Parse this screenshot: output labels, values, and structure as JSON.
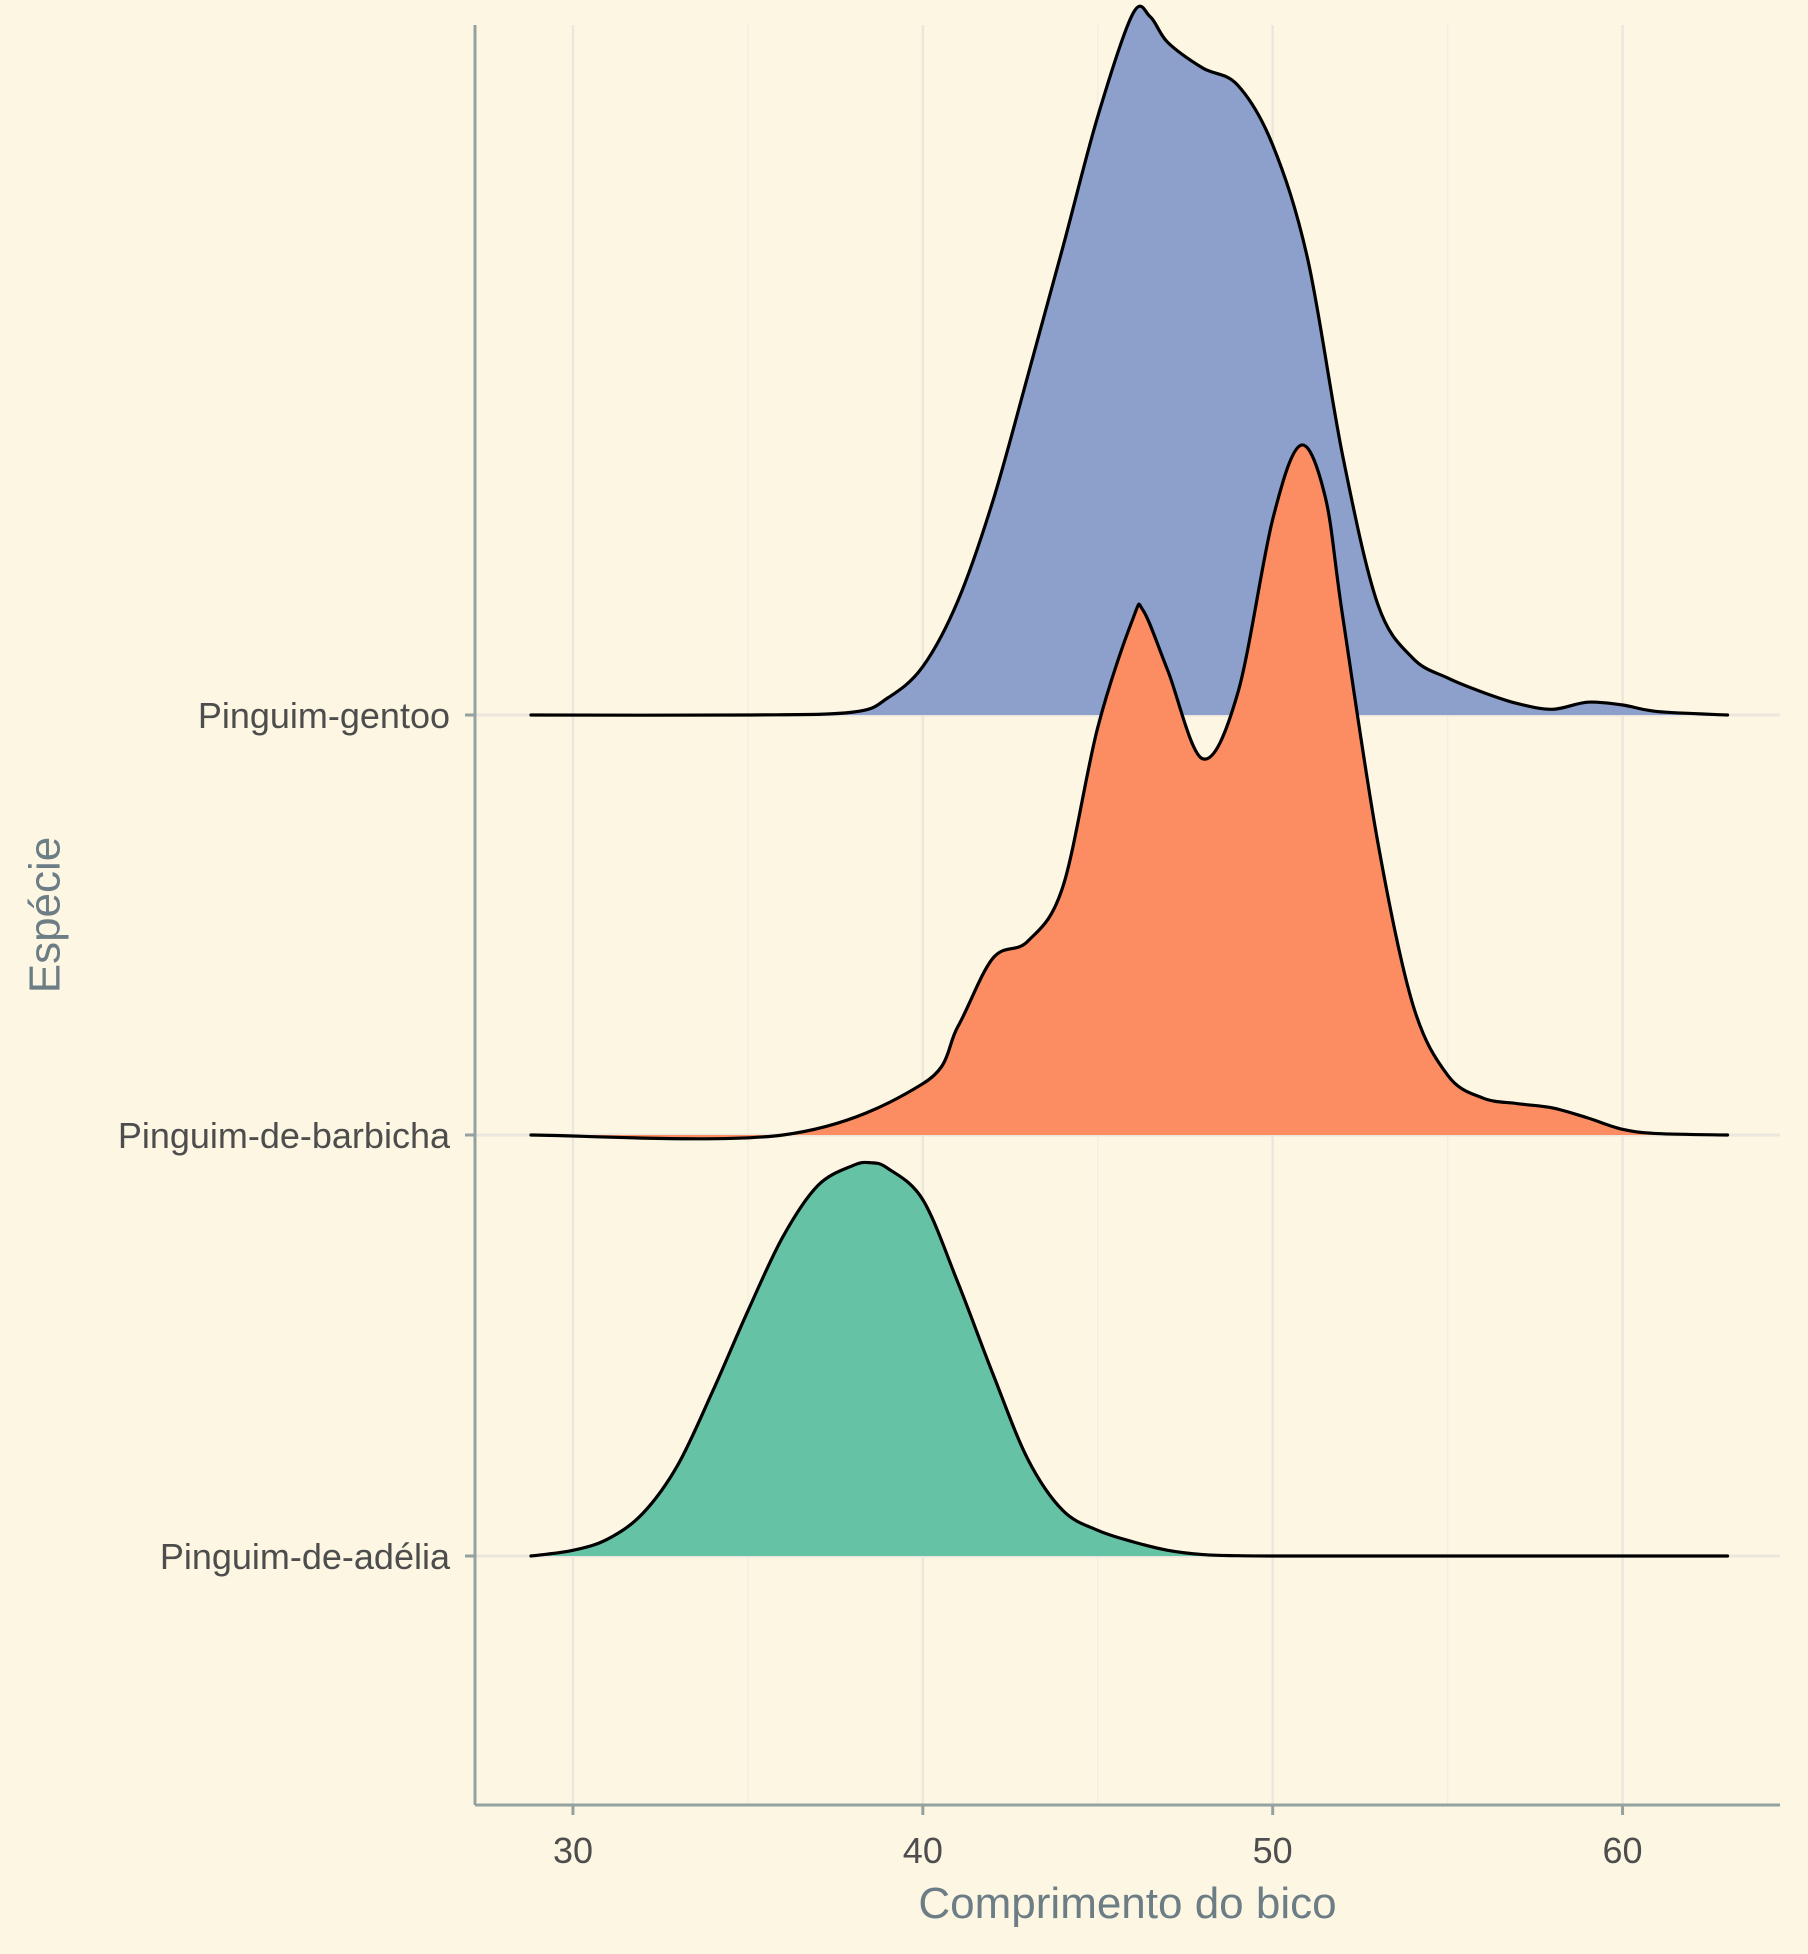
{
  "chart_data": {
    "type": "ridgeline",
    "title": "",
    "xlabel": "Comprimento do bico",
    "ylabel": "Espécie",
    "xlim": [
      27.2,
      64.5
    ],
    "x_ticks": [
      "30",
      "40",
      "50",
      "60"
    ],
    "x_tick_values": [
      30,
      40,
      50,
      60
    ],
    "grid": true,
    "colors": {
      "background": "#fdf6e3",
      "axis": "#93a1a1",
      "grid_major": "#ebe7dc",
      "grid_minor": "#f3eee2",
      "title_text": "#6c7d85",
      "tick_text": "#4d4d4d",
      "outline": "#000000"
    },
    "series": [
      {
        "name": "Pinguim-de-adélia",
        "color": "#66c2a5",
        "x": [
          28.8,
          30,
          31,
          32,
          33,
          34,
          35,
          36,
          37,
          38,
          38.5,
          39,
          40,
          41,
          42,
          43,
          44,
          45,
          46,
          47,
          48,
          49,
          50,
          52,
          55,
          58,
          60,
          63
        ],
        "density": [
          0.0,
          0.02,
          0.06,
          0.15,
          0.32,
          0.58,
          0.86,
          1.12,
          1.3,
          1.37,
          1.38,
          1.36,
          1.25,
          0.96,
          0.64,
          0.34,
          0.16,
          0.09,
          0.05,
          0.02,
          0.005,
          0.001,
          0.0,
          0.0,
          0.0,
          0.0,
          0.0,
          0.0
        ]
      },
      {
        "name": "Pinguim-de-barbicha",
        "color": "#fc8d62",
        "x": [
          28.8,
          36,
          40,
          41,
          42,
          43,
          44,
          45,
          46,
          46.3,
          47,
          48,
          49,
          50,
          50.8,
          51.5,
          52,
          53,
          54,
          55,
          56,
          57,
          58,
          59,
          60,
          61,
          63
        ],
        "density": [
          0.0,
          0.0,
          0.18,
          0.38,
          0.62,
          0.68,
          0.87,
          1.43,
          1.81,
          1.84,
          1.63,
          1.32,
          1.55,
          2.16,
          2.42,
          2.24,
          1.82,
          1.03,
          0.46,
          0.21,
          0.13,
          0.11,
          0.095,
          0.06,
          0.02,
          0.005,
          0.0
        ]
      },
      {
        "name": "Pinguim-gentoo",
        "color": "#8da0cb",
        "x": [
          28.8,
          35,
          38,
          39,
          40,
          41,
          42,
          43,
          44,
          45,
          46,
          46.5,
          47,
          48,
          49,
          50,
          51,
          52,
          53,
          54,
          55,
          56,
          57,
          58,
          59,
          60,
          61,
          63
        ],
        "density": [
          0.0,
          0.0,
          0.01,
          0.06,
          0.17,
          0.4,
          0.75,
          1.19,
          1.64,
          2.1,
          2.46,
          2.45,
          2.36,
          2.27,
          2.21,
          2.0,
          1.6,
          0.91,
          0.39,
          0.2,
          0.13,
          0.08,
          0.04,
          0.02,
          0.045,
          0.035,
          0.012,
          0.0
        ]
      }
    ]
  }
}
